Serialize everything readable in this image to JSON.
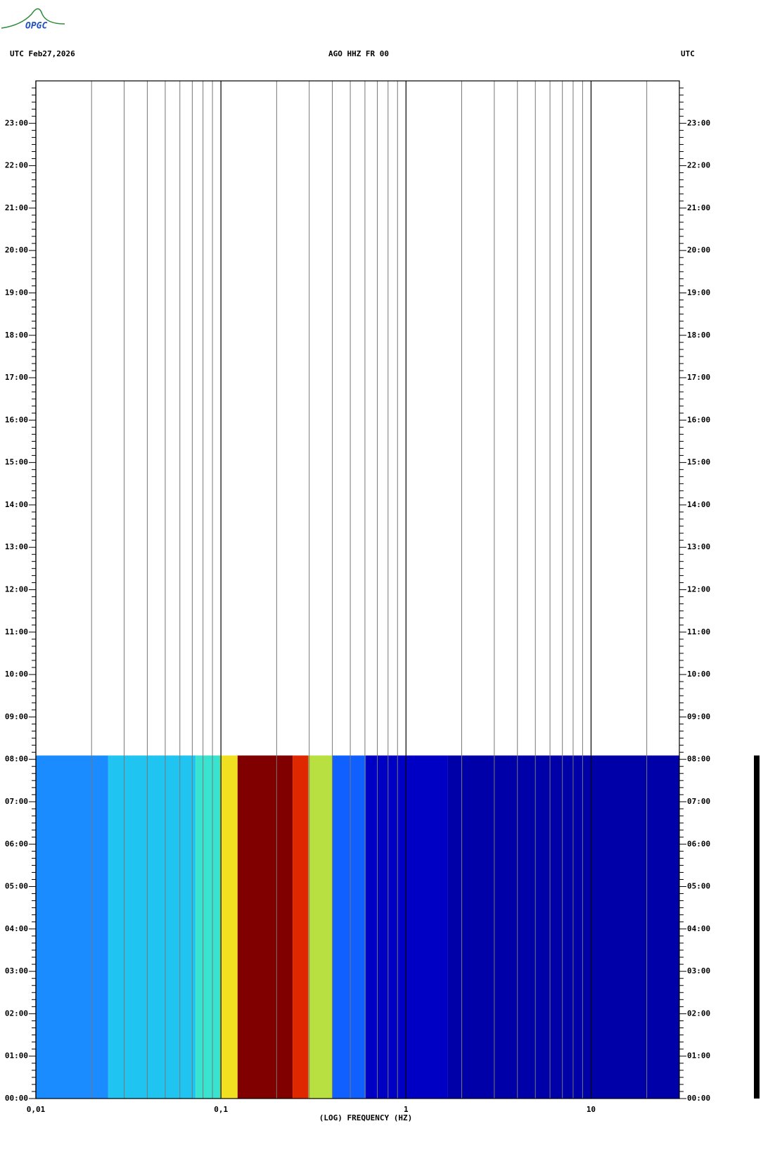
{
  "logo": "OPGC",
  "chart_data": {
    "type": "spectrogram",
    "header_left": "UTC  Feb27,2026",
    "title": "AGO HHZ FR 00",
    "header_right": "UTC",
    "xlabel": "(LOG) FREQUENCY (HZ)",
    "xlog": true,
    "xlim": [
      0.01,
      30
    ],
    "xticks": [
      {
        "value": 0.01,
        "label": "0,01"
      },
      {
        "value": 0.1,
        "label": "0,1"
      },
      1,
      10
    ],
    "xgrid": [
      0.02,
      0.03,
      0.04,
      0.05,
      0.06,
      0.07,
      0.08,
      0.09,
      0.2,
      0.3,
      0.4,
      0.5,
      0.6,
      0.7,
      0.8,
      0.9,
      2,
      3,
      4,
      5,
      6,
      7,
      8,
      9,
      20
    ],
    "ylim": [
      0,
      24
    ],
    "yticks": [
      {
        "value": 0,
        "label": "00:00"
      },
      {
        "value": 1,
        "label": "01:00"
      },
      {
        "value": 2,
        "label": "02:00"
      },
      {
        "value": 3,
        "label": "03:00"
      },
      {
        "value": 4,
        "label": "04:00"
      },
      {
        "value": 5,
        "label": "05:00"
      },
      {
        "value": 6,
        "label": "06:00"
      },
      {
        "value": 7,
        "label": "07:00"
      },
      {
        "value": 8,
        "label": "08:00"
      },
      {
        "value": 9,
        "label": "09:00"
      },
      {
        "value": 10,
        "label": "10:00"
      },
      {
        "value": 11,
        "label": "11:00"
      },
      {
        "value": 12,
        "label": "12:00"
      },
      {
        "value": 13,
        "label": "13:00"
      },
      {
        "value": 14,
        "label": "14:00"
      },
      {
        "value": 15,
        "label": "15:00"
      },
      {
        "value": 16,
        "label": "16:00"
      },
      {
        "value": 17,
        "label": "17:00"
      },
      {
        "value": 18,
        "label": "18:00"
      },
      {
        "value": 19,
        "label": "19:00"
      },
      {
        "value": 20,
        "label": "20:00"
      },
      {
        "value": 21,
        "label": "21:00"
      },
      {
        "value": 22,
        "label": "22:00"
      },
      {
        "value": 23,
        "label": "23:00"
      }
    ],
    "yminor_per_hour": 6,
    "time_range": [
      0,
      8.09
    ],
    "band_edges": [
      0.01,
      0.0246,
      0.073,
      0.099,
      0.123,
      0.244,
      0.297,
      0.4,
      0.606,
      1.68,
      30
    ],
    "band_colors": [
      "#1a8cff",
      "#20c4f0",
      "#38e4d0",
      "#f0e020",
      "#800000",
      "#e02800",
      "#b8e040",
      "#1060ff",
      "#0000c4",
      "#0000a8"
    ],
    "trace_color": "#000000"
  }
}
